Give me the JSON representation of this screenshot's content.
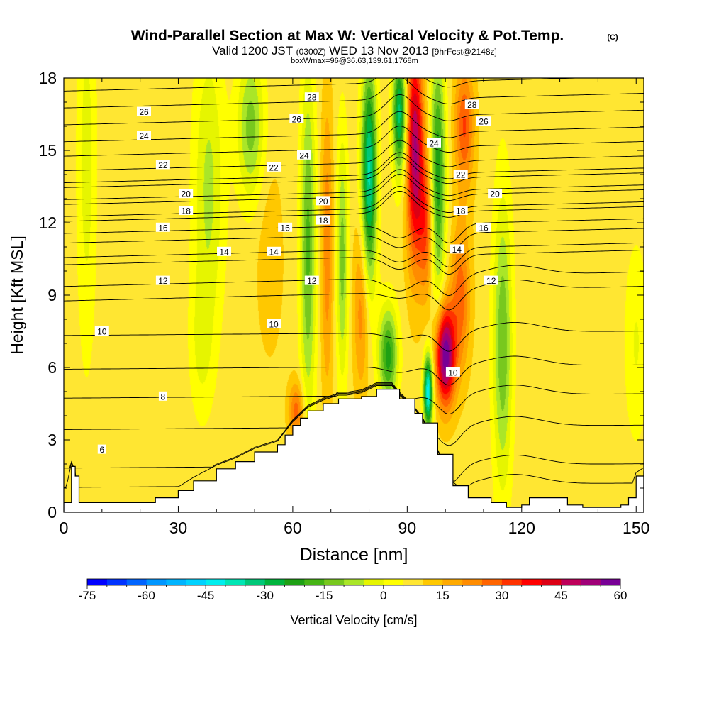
{
  "figure": {
    "title": "Wind-Parallel Section at Max W: Vertical Velocity & Pot.Temp.",
    "copyright_mark": "(C)",
    "subtitle_prefix": "Valid 1200 JST",
    "subtitle_utc": "(0300Z)",
    "subtitle_date": "WED 13 Nov 2013",
    "subtitle_forecast": "[9hrFcst@2148z]",
    "info_line": "boxWmax=96@36.63,139.61,1768m"
  },
  "chart_data": {
    "type": "heatmap",
    "xlabel": "Distance [nm]",
    "ylabel": "Height [Kft MSL]",
    "xlim": [
      0,
      152
    ],
    "ylim": [
      0,
      18
    ],
    "x_ticks": [
      0,
      30,
      60,
      90,
      120,
      150
    ],
    "y_ticks": [
      0,
      3,
      6,
      9,
      12,
      15,
      18
    ],
    "colorbar": {
      "label": "Vertical Velocity [cm/s]",
      "ticks": [
        -75,
        -60,
        -45,
        -30,
        -15,
        0,
        15,
        30,
        45,
        60
      ],
      "bins": [
        {
          "min": -75,
          "max": -70,
          "color": "#0000ff"
        },
        {
          "min": -70,
          "max": -65,
          "color": "#0032ff"
        },
        {
          "min": -65,
          "max": -60,
          "color": "#0064ff"
        },
        {
          "min": -60,
          "max": -55,
          "color": "#0096ff"
        },
        {
          "min": -55,
          "max": -50,
          "color": "#00b4ff"
        },
        {
          "min": -50,
          "max": -45,
          "color": "#00d2ff"
        },
        {
          "min": -45,
          "max": -40,
          "color": "#00eeee"
        },
        {
          "min": -40,
          "max": -35,
          "color": "#00e6b4"
        },
        {
          "min": -35,
          "max": -30,
          "color": "#00c878"
        },
        {
          "min": -30,
          "max": -25,
          "color": "#00b43c"
        },
        {
          "min": -25,
          "max": -20,
          "color": "#1ea014"
        },
        {
          "min": -20,
          "max": -15,
          "color": "#46b414"
        },
        {
          "min": -15,
          "max": -10,
          "color": "#78c81e"
        },
        {
          "min": -10,
          "max": -5,
          "color": "#aae628"
        },
        {
          "min": -5,
          "max": 0,
          "color": "#e6f500"
        },
        {
          "min": 0,
          "max": 5,
          "color": "#ffff00"
        },
        {
          "min": 5,
          "max": 10,
          "color": "#ffe632"
        },
        {
          "min": 10,
          "max": 15,
          "color": "#ffc800"
        },
        {
          "min": 15,
          "max": 20,
          "color": "#ffaa00"
        },
        {
          "min": 20,
          "max": 25,
          "color": "#ff8c00"
        },
        {
          "min": 25,
          "max": 30,
          "color": "#ff6400"
        },
        {
          "min": 30,
          "max": 35,
          "color": "#ff3200"
        },
        {
          "min": 35,
          "max": 40,
          "color": "#ff0000"
        },
        {
          "min": 40,
          "max": 45,
          "color": "#dc0014"
        },
        {
          "min": 45,
          "max": 50,
          "color": "#be005a"
        },
        {
          "min": 50,
          "max": 55,
          "color": "#a00078"
        },
        {
          "min": 55,
          "max": 60,
          "color": "#780096"
        }
      ]
    },
    "background_value_cms": 8,
    "velocity_features": [
      {
        "x": 6,
        "y": 14.5,
        "wx": 2.5,
        "wy": 8,
        "w": -8
      },
      {
        "x": 38,
        "y": 13.5,
        "wx": 4,
        "wy": 6,
        "w": -12
      },
      {
        "x": 36,
        "y": 7,
        "wx": 3,
        "wy": 3,
        "w": -6
      },
      {
        "x": 49,
        "y": 16,
        "wx": 3.5,
        "wy": 3,
        "w": -18
      },
      {
        "x": 54,
        "y": 10.5,
        "wx": 3.5,
        "wy": 4,
        "w": 8
      },
      {
        "x": 61,
        "y": 4.2,
        "wx": 2,
        "wy": 1.2,
        "w": 22
      },
      {
        "x": 64,
        "y": 11,
        "wx": 2,
        "wy": 7,
        "w": -22
      },
      {
        "x": 69,
        "y": 11,
        "wx": 1.5,
        "wy": 6,
        "w": 18
      },
      {
        "x": 73,
        "y": 10.5,
        "wx": 1.5,
        "wy": 5,
        "w": -18
      },
      {
        "x": 78,
        "y": 8.5,
        "wx": 2,
        "wy": 3.5,
        "w": 18
      },
      {
        "x": 80,
        "y": 14,
        "wx": 2,
        "wy": 4.5,
        "w": -42
      },
      {
        "x": 85,
        "y": 6.5,
        "wx": 2.5,
        "wy": 2,
        "w": -28
      },
      {
        "x": 88,
        "y": 16.5,
        "wx": 1.8,
        "wy": 2.5,
        "w": -38
      },
      {
        "x": 92,
        "y": 15,
        "wx": 2.2,
        "wy": 4.5,
        "w": 45
      },
      {
        "x": 95,
        "y": 12,
        "wx": 2,
        "wy": 3,
        "w": 25
      },
      {
        "x": 95.5,
        "y": 5,
        "wx": 1.2,
        "wy": 1.5,
        "w": -50
      },
      {
        "x": 98,
        "y": 14,
        "wx": 2,
        "wy": 5,
        "w": -30
      },
      {
        "x": 100,
        "y": 6.5,
        "wx": 2.5,
        "wy": 2,
        "w": 55
      },
      {
        "x": 104,
        "y": 9,
        "wx": 2.5,
        "wy": 3,
        "w": 22
      },
      {
        "x": 105,
        "y": 16,
        "wx": 2.5,
        "wy": 2.5,
        "w": 25
      },
      {
        "x": 115,
        "y": 7,
        "wx": 2.5,
        "wy": 6,
        "w": -20
      },
      {
        "x": 129,
        "y": 12.5,
        "wx": 4,
        "wy": 4,
        "w": 3
      },
      {
        "x": 150,
        "y": 7,
        "wx": 3,
        "wy": 4,
        "w": -6
      }
    ],
    "terrain_profile": {
      "x": [
        0,
        2,
        3,
        4,
        24,
        30,
        34,
        40,
        45,
        50,
        56,
        58,
        60,
        62,
        64,
        68,
        72,
        74,
        78,
        82,
        86,
        88,
        92,
        94,
        98,
        102,
        106,
        112,
        116,
        118,
        120,
        122,
        128,
        132,
        136,
        146,
        148,
        150,
        152
      ],
      "height_kft": [
        0.4,
        1.9,
        1.5,
        0.4,
        0.6,
        0.9,
        1.3,
        1.8,
        2.1,
        2.5,
        2.8,
        3.2,
        3.6,
        3.9,
        4.2,
        4.5,
        4.7,
        4.7,
        4.8,
        5.1,
        5.1,
        4.7,
        4.1,
        3.7,
        2.4,
        1.1,
        0.6,
        0.4,
        0.2,
        0.2,
        0.3,
        0.6,
        0.6,
        0.3,
        0.2,
        0.3,
        0.6,
        1.5,
        1.7
      ]
    },
    "isentropes": {
      "levels": [
        5,
        6,
        7,
        8,
        9,
        10,
        11,
        12,
        13,
        14,
        15,
        16,
        17,
        18,
        19,
        20,
        21,
        22,
        23,
        24,
        25,
        26,
        27,
        28,
        29
      ],
      "base_height_kft": [
        1.1,
        1.9,
        3.5,
        4.8,
        6.0,
        7.4,
        9.0,
        9.6,
        10.5,
        10.8,
        11.4,
        11.8,
        12.3,
        12.5,
        13.0,
        13.2,
        13.7,
        13.9,
        14.4,
        15.0,
        15.6,
        16.3,
        17.0,
        17.7,
        18.4
      ],
      "labels": [
        {
          "text": "6",
          "x": 10,
          "y": 2.6
        },
        {
          "text": "8",
          "x": 26,
          "y": 4.8
        },
        {
          "text": "10",
          "x": 10,
          "y": 7.5
        },
        {
          "text": "12",
          "x": 26,
          "y": 9.6
        },
        {
          "text": "14",
          "x": 42,
          "y": 10.8
        },
        {
          "text": "16",
          "x": 26,
          "y": 11.8
        },
        {
          "text": "18",
          "x": 32,
          "y": 12.5
        },
        {
          "text": "20",
          "x": 32,
          "y": 13.2
        },
        {
          "text": "22",
          "x": 26,
          "y": 14.4
        },
        {
          "text": "24",
          "x": 21,
          "y": 15.6
        },
        {
          "text": "26",
          "x": 21,
          "y": 16.6
        },
        {
          "text": "10",
          "x": 55,
          "y": 7.8
        },
        {
          "text": "12",
          "x": 65,
          "y": 9.6
        },
        {
          "text": "14",
          "x": 55,
          "y": 10.8
        },
        {
          "text": "16",
          "x": 58,
          "y": 11.8
        },
        {
          "text": "18",
          "x": 68,
          "y": 12.1
        },
        {
          "text": "20",
          "x": 68,
          "y": 12.9
        },
        {
          "text": "22",
          "x": 55,
          "y": 14.3
        },
        {
          "text": "24",
          "x": 63,
          "y": 14.8
        },
        {
          "text": "26",
          "x": 61,
          "y": 16.3
        },
        {
          "text": "28",
          "x": 65,
          "y": 17.2
        },
        {
          "text": "10",
          "x": 102,
          "y": 5.8
        },
        {
          "text": "12",
          "x": 112,
          "y": 9.6
        },
        {
          "text": "14",
          "x": 103,
          "y": 10.9
        },
        {
          "text": "16",
          "x": 110,
          "y": 11.8
        },
        {
          "text": "18",
          "x": 104,
          "y": 12.5
        },
        {
          "text": "20",
          "x": 113,
          "y": 13.2
        },
        {
          "text": "22",
          "x": 104,
          "y": 14.0
        },
        {
          "text": "24",
          "x": 97,
          "y": 15.3
        },
        {
          "text": "26",
          "x": 110,
          "y": 16.2
        },
        {
          "text": "28",
          "x": 107,
          "y": 16.9
        }
      ]
    }
  }
}
